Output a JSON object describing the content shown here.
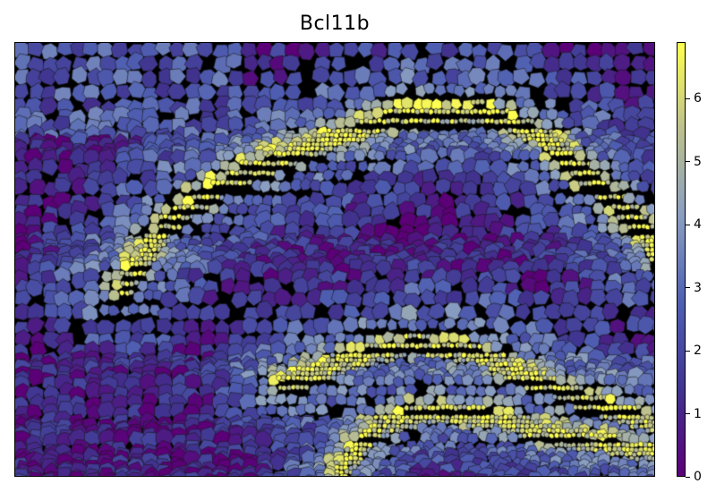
{
  "figure": {
    "title": "Bcl11b",
    "colormap": [
      "#5b0077",
      "#40348f",
      "#4f5fb2",
      "#8a9ec1",
      "#bcc08e",
      "#ffff4f"
    ]
  },
  "colorbar": {
    "min": 0,
    "max": 6.9,
    "ticks": [
      "0",
      "1",
      "2",
      "3",
      "4",
      "5",
      "6"
    ]
  }
}
